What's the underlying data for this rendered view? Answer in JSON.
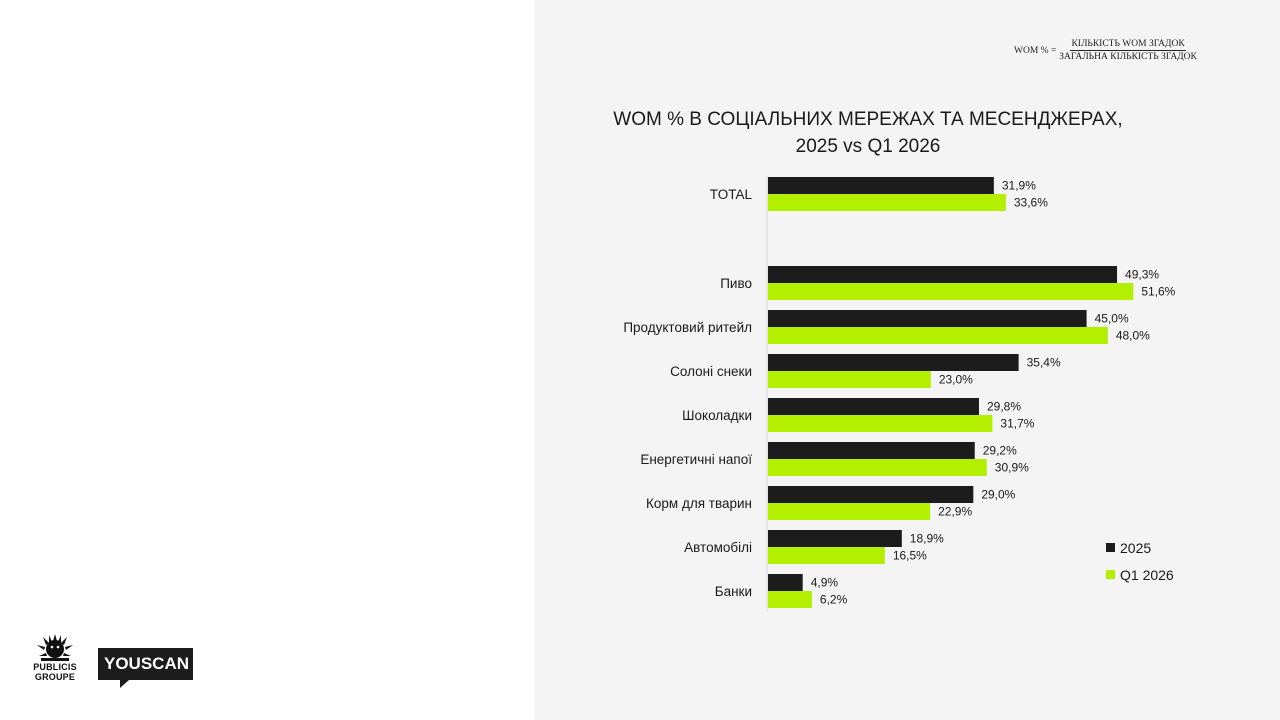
{
  "formula": {
    "lhs": "WOM % =",
    "numerator": "КІЛЬКІСТЬ WOM ЗГАДОК",
    "denominator": "ЗАГАЛЬНА КІЛЬКІСТЬ ЗГАДОК"
  },
  "logos": {
    "publicis_line1": "PUBLICIS",
    "publicis_line2": "GROUPE",
    "youscan": "YOUSCAN"
  },
  "chart_data": {
    "type": "bar",
    "orientation": "horizontal",
    "title_line1": "WOM % В СОЦІАЛЬНИХ МЕРЕЖАХ ТА МЕСЕНДЖЕРАХ,",
    "title_line2": "2025 vs Q1 2026",
    "categories": [
      "TOTAL",
      "Пиво",
      "Продуктовий ритейл",
      "Солоні снеки",
      "Шоколадки",
      "Енергетичні напої",
      "Корм для тварин",
      "Автомобілі",
      "Банки"
    ],
    "series": [
      {
        "name": "2025",
        "color": "#1c1c1c",
        "values": [
          31.9,
          49.3,
          45.0,
          35.4,
          29.8,
          29.2,
          29.0,
          18.9,
          4.9
        ],
        "labels": [
          "31,9%",
          "49,3%",
          "45,0%",
          "35,4%",
          "29,8%",
          "29,2%",
          "29,0%",
          "18,9%",
          "4,9%"
        ]
      },
      {
        "name": "Q1 2026",
        "color": "#b2f000",
        "values": [
          33.6,
          51.6,
          48.0,
          23.0,
          31.7,
          30.9,
          22.9,
          16.5,
          6.2
        ],
        "labels": [
          "33,6%",
          "51,6%",
          "48,0%",
          "23,0%",
          "31,7%",
          "30,9%",
          "22,9%",
          "16,5%",
          "6,2%"
        ]
      }
    ],
    "xlim": [
      0,
      60
    ],
    "grid": false,
    "legend_position": "bottom-right"
  }
}
